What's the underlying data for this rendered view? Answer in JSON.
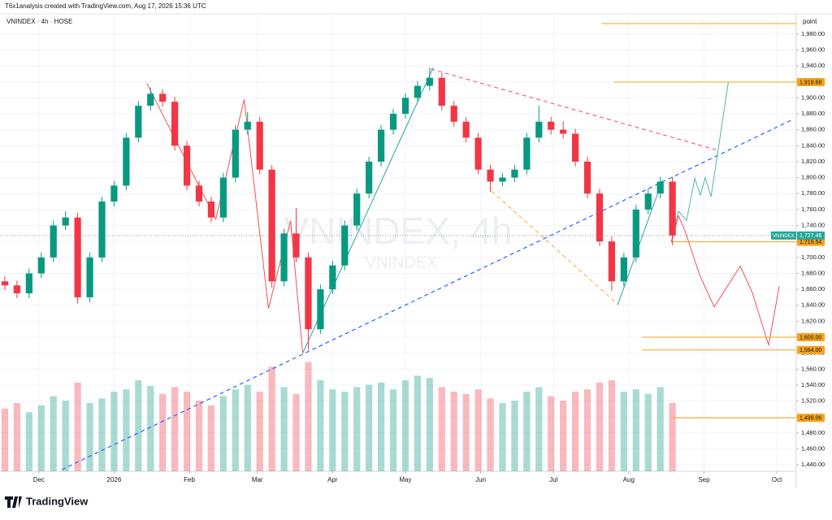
{
  "chart_data": {
    "type": "candlestick",
    "credit": "T6x1analysis created with TradingView.com, Aug 17, 2026 15:36 UTC",
    "title": "VNINDEX · 4h · HOSE",
    "watermark": "VNINDEX, 4h",
    "watermark_sub": "VNINDEX",
    "y_axis_label": "point",
    "brand": "TradingView",
    "up_color": "#089981",
    "down_color": "#f23645",
    "grid": true,
    "xlim": [
      -7,
      321
    ],
    "xticks": [
      {
        "value": 9,
        "label": "Dec"
      },
      {
        "value": 40,
        "label": "2026"
      },
      {
        "value": 71,
        "label": "Feb"
      },
      {
        "value": 99,
        "label": "Mar"
      },
      {
        "value": 130,
        "label": "Apr"
      },
      {
        "value": 160,
        "label": "May"
      },
      {
        "value": 191,
        "label": "Jun"
      },
      {
        "value": 221,
        "label": "Jul"
      },
      {
        "value": 252,
        "label": "Aug"
      },
      {
        "value": 283,
        "label": "Sep"
      },
      {
        "value": 313,
        "label": "Oct"
      }
    ],
    "ylim": [
      1427,
      1993
    ],
    "yticks": [
      {
        "value": 1440,
        "label": "1,440.00"
      },
      {
        "value": 1460,
        "label": "1,460.00"
      },
      {
        "value": 1480,
        "label": "1,480.00"
      },
      {
        "value": 1500,
        "label": "1,500.00"
      },
      {
        "value": 1520,
        "label": "1,520.00"
      },
      {
        "value": 1540,
        "label": "1,540.00"
      },
      {
        "value": 1560,
        "label": "1,560.00"
      },
      {
        "value": 1580,
        "label": "1,580.00"
      },
      {
        "value": 1600,
        "label": "1,600.00"
      },
      {
        "value": 1620,
        "label": "1,620.00"
      },
      {
        "value": 1640,
        "label": "1,640.00"
      },
      {
        "value": 1660,
        "label": "1,660.00"
      },
      {
        "value": 1680,
        "label": "1,680.00"
      },
      {
        "value": 1700,
        "label": "1,700.00"
      },
      {
        "value": 1720,
        "label": "1,720.00"
      },
      {
        "value": 1740,
        "label": "1,740.00"
      },
      {
        "value": 1760,
        "label": "1,760.00"
      },
      {
        "value": 1780,
        "label": "1,780.00"
      },
      {
        "value": 1800,
        "label": "1,800.00"
      },
      {
        "value": 1820,
        "label": "1,820.00"
      },
      {
        "value": 1840,
        "label": "1,840.00"
      },
      {
        "value": 1860,
        "label": "1,860.00"
      },
      {
        "value": 1880,
        "label": "1,880.00"
      },
      {
        "value": 1900,
        "label": "1,900.00"
      },
      {
        "value": 1920,
        "label": "1,920.00"
      },
      {
        "value": 1940,
        "label": "1,940.00"
      },
      {
        "value": 1960,
        "label": "1,960.00"
      },
      {
        "value": 1980,
        "label": "1,980.00"
      }
    ],
    "x": [
      -5,
      0,
      5,
      10,
      15,
      20,
      25,
      30,
      35,
      40,
      45,
      50,
      55,
      60,
      65,
      70,
      75,
      80,
      85,
      90,
      95,
      100,
      105,
      110,
      115,
      120,
      125,
      130,
      135,
      140,
      145,
      150,
      155,
      160,
      165,
      170,
      175,
      180,
      185,
      190,
      195,
      200,
      205,
      210,
      215,
      220,
      225,
      230,
      235,
      240,
      245,
      250,
      255,
      260,
      265,
      270
    ],
    "ohlc": [
      [
        1670,
        1676,
        1659,
        1665
      ],
      [
        1665,
        1671,
        1649,
        1655
      ],
      [
        1655,
        1686,
        1649,
        1680
      ],
      [
        1680,
        1706,
        1674,
        1700
      ],
      [
        1700,
        1746,
        1694,
        1740
      ],
      [
        1740,
        1758,
        1734,
        1750
      ],
      [
        1750,
        1756,
        1642,
        1650
      ],
      [
        1650,
        1706,
        1644,
        1700
      ],
      [
        1700,
        1776,
        1694,
        1770
      ],
      [
        1770,
        1796,
        1764,
        1790
      ],
      [
        1790,
        1856,
        1784,
        1850
      ],
      [
        1850,
        1896,
        1844,
        1890
      ],
      [
        1890,
        1913,
        1884,
        1905
      ],
      [
        1905,
        1911,
        1889,
        1895
      ],
      [
        1895,
        1901,
        1834,
        1840
      ],
      [
        1840,
        1846,
        1784,
        1790
      ],
      [
        1790,
        1796,
        1764,
        1770
      ],
      [
        1770,
        1776,
        1744,
        1750
      ],
      [
        1750,
        1806,
        1744,
        1800
      ],
      [
        1800,
        1866,
        1794,
        1860
      ],
      [
        1860,
        1882,
        1854,
        1870
      ],
      [
        1870,
        1876,
        1804,
        1810
      ],
      [
        1810,
        1816,
        1662,
        1670
      ],
      [
        1670,
        1736,
        1664,
        1730
      ],
      [
        1730,
        1762,
        1694,
        1700
      ],
      [
        1700,
        1706,
        1584,
        1610
      ],
      [
        1610,
        1666,
        1604,
        1660
      ],
      [
        1660,
        1696,
        1654,
        1690
      ],
      [
        1690,
        1746,
        1684,
        1740
      ],
      [
        1740,
        1786,
        1734,
        1780
      ],
      [
        1780,
        1826,
        1774,
        1820
      ],
      [
        1820,
        1866,
        1814,
        1860
      ],
      [
        1860,
        1886,
        1854,
        1880
      ],
      [
        1880,
        1906,
        1874,
        1900
      ],
      [
        1900,
        1921,
        1894,
        1915
      ],
      [
        1915,
        1938,
        1909,
        1925
      ],
      [
        1925,
        1931,
        1884,
        1890
      ],
      [
        1890,
        1896,
        1864,
        1870
      ],
      [
        1870,
        1876,
        1844,
        1850
      ],
      [
        1850,
        1856,
        1804,
        1810
      ],
      [
        1810,
        1816,
        1782,
        1795
      ],
      [
        1795,
        1806,
        1789,
        1800
      ],
      [
        1800,
        1816,
        1794,
        1810
      ],
      [
        1810,
        1856,
        1804,
        1850
      ],
      [
        1850,
        1890,
        1844,
        1870
      ],
      [
        1870,
        1876,
        1854,
        1860
      ],
      [
        1860,
        1871,
        1849,
        1855
      ],
      [
        1855,
        1861,
        1814,
        1820
      ],
      [
        1820,
        1826,
        1774,
        1780
      ],
      [
        1780,
        1786,
        1714,
        1720
      ],
      [
        1720,
        1726,
        1658,
        1670
      ],
      [
        1670,
        1706,
        1664,
        1700
      ],
      [
        1700,
        1766,
        1694,
        1760
      ],
      [
        1760,
        1786,
        1754,
        1780
      ],
      [
        1780,
        1801,
        1774,
        1795
      ],
      [
        1795,
        1801,
        1715,
        1727.46
      ]
    ],
    "volume": [
      55,
      60,
      52,
      58,
      66,
      62,
      78,
      60,
      64,
      70,
      72,
      80,
      75,
      68,
      74,
      70,
      62,
      58,
      66,
      72,
      76,
      70,
      92,
      74,
      68,
      96,
      80,
      72,
      70,
      74,
      76,
      78,
      72,
      80,
      84,
      82,
      74,
      70,
      68,
      72,
      64,
      60,
      62,
      70,
      74,
      66,
      62,
      70,
      72,
      78,
      80,
      70,
      72,
      68,
      74,
      60
    ],
    "vlim": [
      0,
      100
    ],
    "last_price": {
      "value": 1727.46,
      "label": "1,727.46",
      "name": "VNINDEX",
      "color": "#26a69a"
    },
    "levels": [
      {
        "value": 1993,
        "x0": 240.8
      },
      {
        "value": 1919.68,
        "label": "1,919.68",
        "x0": 245.8
      },
      {
        "value": 1719.54,
        "label": "1,719.54",
        "x0": 269.5
      },
      {
        "value": 1600,
        "label": "1,600.00",
        "x0": 257.5
      },
      {
        "value": 1584,
        "label": "1,584.00",
        "x0": 257.5
      },
      {
        "value": 1499.06,
        "label": "1,499.06",
        "x0": 269.5
      }
    ],
    "level_color": "#f7a21b",
    "drawings": [
      {
        "color": "#2962ff",
        "dash": true,
        "x": [
          18.4,
          319
        ],
        "y": [
          1434,
          1872
        ]
      },
      {
        "color": "#f06292",
        "dash": true,
        "x": [
          170.5,
          289
        ],
        "y": [
          1936,
          1834
        ]
      },
      {
        "color": "#ffb74d",
        "dash": true,
        "x": [
          195.6,
          247.5
        ],
        "y": [
          1783,
          1641
        ]
      },
      {
        "color": "#26a69a",
        "dash": false,
        "x": [
          117.7,
          171.5
        ],
        "y": [
          1580,
          1938
        ]
      },
      {
        "color": "#ef5350",
        "dash": false,
        "x": [
          53.5,
          81.9,
          93.6,
          103.6,
          112.7,
          117.7
        ],
        "y": [
          1918,
          1748,
          1898,
          1636,
          1746,
          1580
        ]
      },
      {
        "color": "#26a69a",
        "dash": false,
        "x": [
          247.5,
          265.9
        ],
        "y": [
          1641,
          1797
        ]
      },
      {
        "color": "#4db6ac",
        "dash": false,
        "x": [
          269.5,
          272.5,
          275.8,
          279.2,
          281.5,
          283.5,
          285.9,
          293
        ],
        "y": [
          1719,
          1758,
          1746,
          1799,
          1778,
          1800,
          1776,
          1919
        ]
      },
      {
        "color": "#ef5350",
        "dash": false,
        "x": [
          269.5,
          272.5,
          275.2,
          281.2,
          287.2,
          297.9,
          302.9,
          309.6,
          314
        ],
        "y": [
          1719,
          1752,
          1733,
          1678,
          1638,
          1689,
          1656,
          1590,
          1664
        ]
      }
    ]
  }
}
